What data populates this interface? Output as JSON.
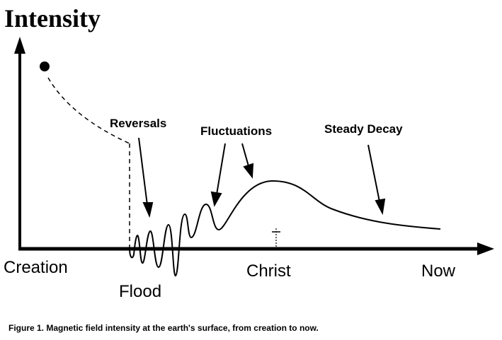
{
  "diagram": {
    "y_axis_label": "Intensity",
    "x_axis_labels": {
      "start": "Creation",
      "flood": "Flood",
      "christ": "Christ",
      "end": "Now"
    },
    "annotations": {
      "reversals": "Reversals",
      "fluctuations": "Fluctuations",
      "steady_decay": "Steady Decay"
    },
    "caption": "Figure 1. Magnetic field intensity at the earth's surface, from creation to now."
  }
}
